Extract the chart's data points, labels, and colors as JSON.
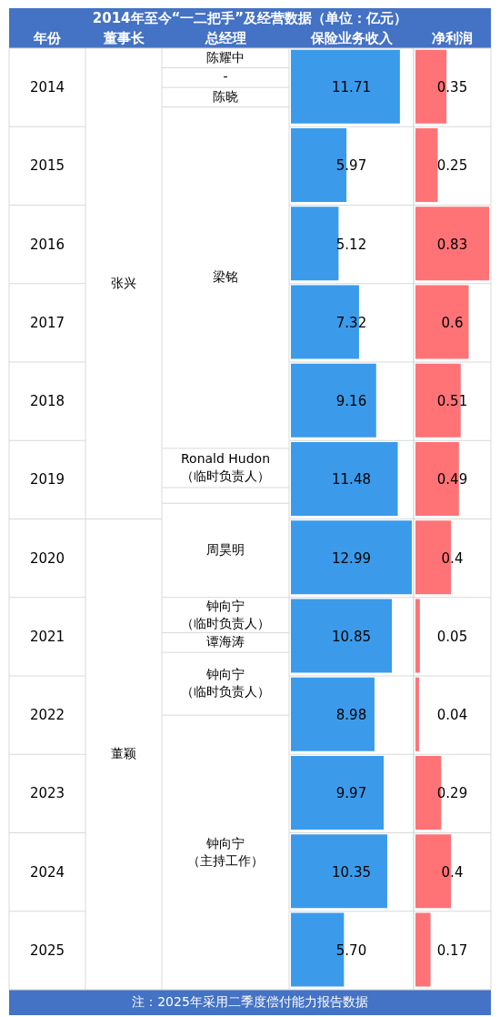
{
  "chart_data": [
    {
      "type": "bar",
      "orientation": "horizontal",
      "title": "2014年至今“一二把手”及经营数据（单位：亿元）",
      "ylabel": "年份",
      "categories": [
        "2014",
        "2015",
        "2016",
        "2017",
        "2018",
        "2019",
        "2020",
        "2021",
        "2022",
        "2023",
        "2024",
        "2025"
      ],
      "series": [
        {
          "name": "保险业务收入",
          "color": "#3b9bea",
          "values": [
            11.71,
            5.97,
            5.12,
            7.32,
            9.16,
            11.48,
            12.99,
            10.85,
            8.98,
            9.97,
            10.35,
            5.7
          ],
          "value_labels": [
            "11.71",
            "5.97",
            "5.12",
            "7.32",
            "9.16",
            "11.48",
            "12.99",
            "10.85",
            "8.98",
            "9.97",
            "10.35",
            "5.70"
          ]
        }
      ],
      "annotations": [
        "董事长",
        "总经理",
        "张兴",
        "董颖",
        "陈耀中",
        "-",
        "陈晓",
        "梁铭",
        "Ronald Hudon",
        "（临时负责人）",
        "周昊明",
        "钟向宁",
        "（临时负责人）",
        "谭海涛",
        "钟向宁",
        "（临时负责人）",
        "钟向宁",
        "（主持工作）",
        "注：2025年采用二季度偿付能力报告数据"
      ]
    },
    {
      "type": "bar",
      "orientation": "horizontal",
      "tick_labels": false,
      "categories": [
        "2014",
        "2015",
        "2016",
        "2017",
        "2018",
        "2019",
        "2020",
        "2021",
        "2022",
        "2023",
        "2024",
        "2025"
      ],
      "series": [
        {
          "name": "净利润",
          "color": "#ff7377",
          "values": [
            0.35,
            0.25,
            0.83,
            0.6,
            0.51,
            0.49,
            0.4,
            0.05,
            0.04,
            0.29,
            0.4,
            0.17
          ],
          "value_labels": [
            "0.35",
            "0.25",
            "0.83",
            "0.6",
            "0.51",
            "0.49",
            "0.4",
            "0.05",
            "0.04",
            "0.29",
            "0.4",
            "0.17"
          ]
        }
      ]
    }
  ]
}
